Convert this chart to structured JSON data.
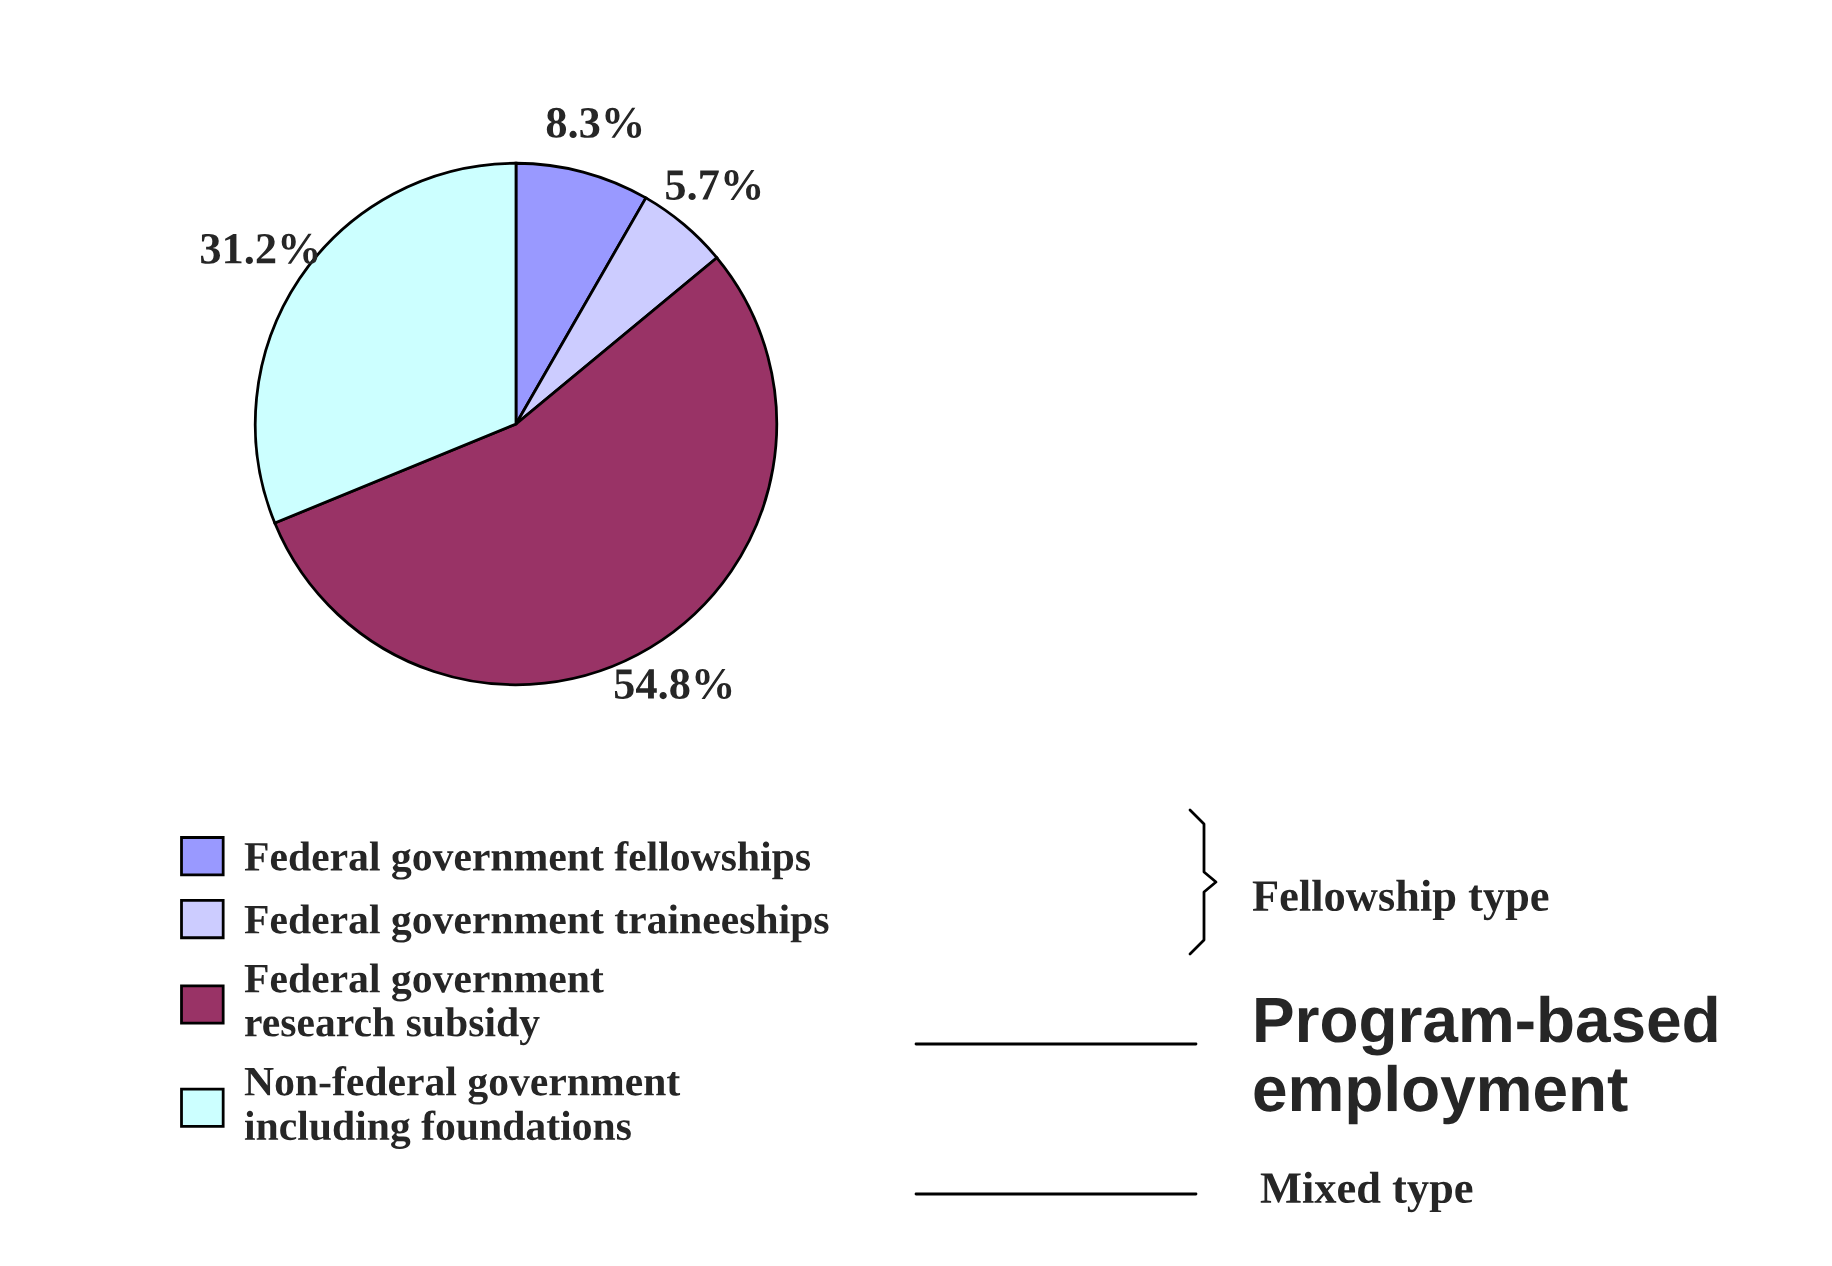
{
  "chart_data": {
    "type": "pie",
    "categories": [
      "Federal government fellowships",
      "Federal government traineeships",
      "Federal government\nresearch subsidy",
      "Non-federal government\nincluding foundations"
    ],
    "values": [
      8.3,
      5.7,
      54.8,
      31.2
    ],
    "value_labels": [
      "8.3%",
      "5.7%",
      "54.8%",
      "31.2%"
    ],
    "colors": [
      "#9999ff",
      "#ccccff",
      "#993366",
      "#ccffff"
    ],
    "legend": "bottom",
    "annotations": [
      "Fellowship type",
      "Program-based\nemployment",
      "Mixed type"
    ]
  }
}
